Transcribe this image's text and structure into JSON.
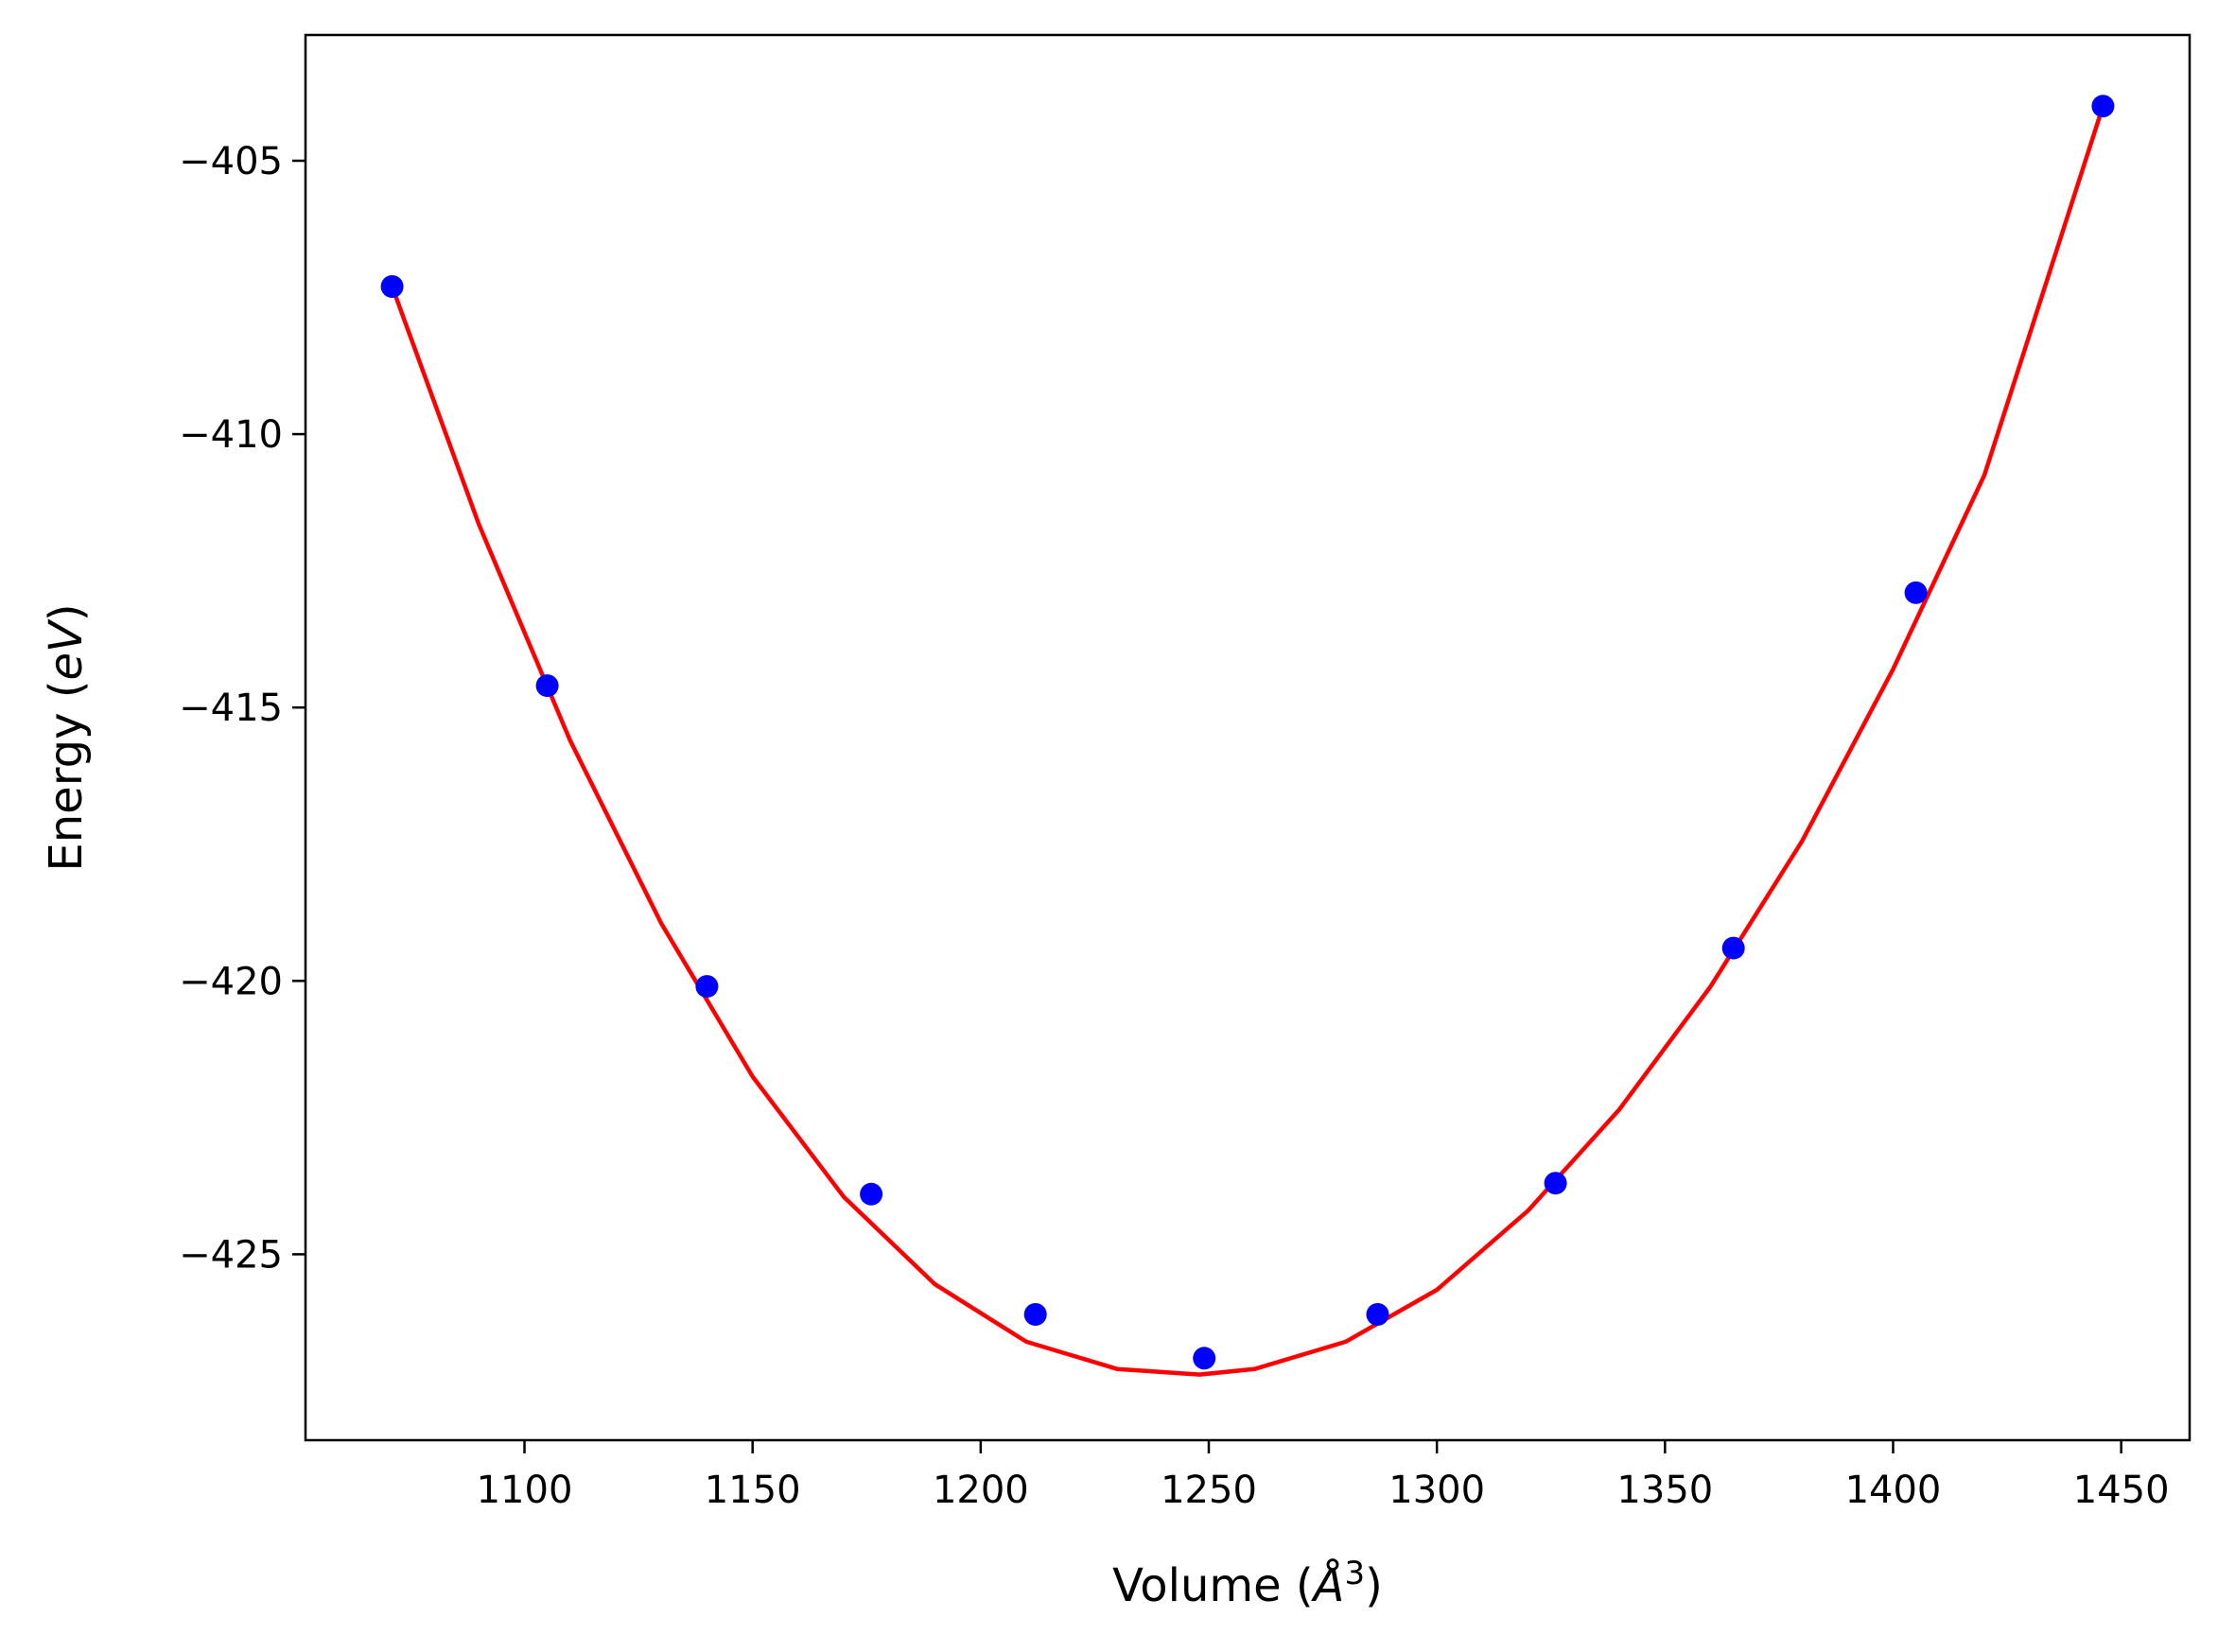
{
  "chart_data": {
    "type": "scatter",
    "title": "",
    "xlabel": {
      "prefix": "Volume (",
      "symbol": "Å",
      "exponent": "3",
      "suffix": ")"
    },
    "ylabel": {
      "prefix": "Energy (",
      "unit": "eV",
      "suffix": ")"
    },
    "xlim": [
      1052,
      1465
    ],
    "ylim": [
      -428.4,
      -402.7
    ],
    "xticks": [
      1100,
      1150,
      1200,
      1250,
      1300,
      1350,
      1400,
      1450
    ],
    "yticks": [
      -405,
      -410,
      -415,
      -420,
      -425
    ],
    "tick_labels": {
      "x": [
        "1100",
        "1150",
        "1200",
        "1250",
        "1300",
        "1350",
        "1400",
        "1450"
      ],
      "y": [
        "−405",
        "−410",
        "−415",
        "−420",
        "−425"
      ]
    },
    "grid": false,
    "series": [
      {
        "kind": "points",
        "color": "#0000ff",
        "x": [
          1071,
          1105,
          1140,
          1176,
          1212,
          1249,
          1287,
          1326,
          1365,
          1405,
          1446
        ],
        "y": [
          -407.3,
          -414.6,
          -420.1,
          -423.9,
          -426.1,
          -426.9,
          -426.1,
          -423.7,
          -419.4,
          -412.9,
          -404.0
        ]
      },
      {
        "kind": "line",
        "color": "#ff0000",
        "x": [
          1071,
          1090,
          1110,
          1130,
          1150,
          1170,
          1190,
          1210,
          1230,
          1248,
          1260,
          1280,
          1300,
          1320,
          1340,
          1360,
          1380,
          1400,
          1420,
          1446
        ],
        "y": [
          -407.3,
          -411.65,
          -415.6,
          -418.95,
          -421.75,
          -423.95,
          -425.55,
          -426.6,
          -427.1,
          -427.2,
          -427.1,
          -426.6,
          -425.65,
          -424.2,
          -422.35,
          -420.1,
          -417.45,
          -414.3,
          -410.75,
          -404.0
        ]
      }
    ]
  }
}
